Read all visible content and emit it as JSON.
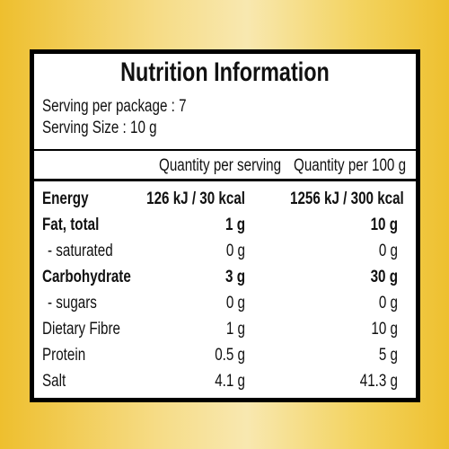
{
  "title": "Nutrition Information",
  "serving_per_package": "Serving per package : 7",
  "serving_size": "Serving Size : 10 g",
  "table": {
    "header": [
      "Quantity per serving",
      "Quantity per 100 g"
    ],
    "rows": [
      [
        "Energy",
        "126 kJ / 30 kcal",
        "1256 kJ / 300 kcal"
      ],
      [
        "Fat, total",
        "1 g",
        "10 g"
      ],
      [
        "- saturated",
        "0 g",
        "0 g"
      ],
      [
        "Carbohydrate",
        "3 g",
        "30 g"
      ],
      [
        "- sugars",
        "0 g",
        "0 g"
      ],
      [
        "Dietary Fibre",
        "1 g",
        "10 g"
      ],
      [
        "Protein",
        "0.5 g",
        "5 g"
      ],
      [
        "Salt",
        "4.1 g",
        "41.3 g"
      ]
    ]
  }
}
